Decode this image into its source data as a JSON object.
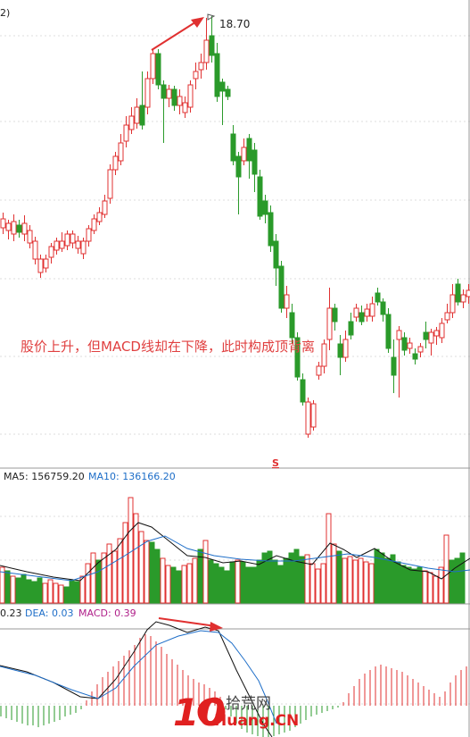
{
  "chart_data": [
    {
      "type": "candlestick",
      "panel": "price",
      "top_left_label": "2)",
      "peak_label": "18.70",
      "annotation": "股价上升，但MACD线却在下降，此时构成顶背离",
      "marker_symbol": "S",
      "colors": {
        "up": "#e03030",
        "down": "#2a9a2a",
        "annotation": "#e04040",
        "arrow": "#e03030",
        "grid": "#d8d8d8"
      }
    },
    {
      "type": "bar",
      "panel": "volume",
      "legend": [
        {
          "label": "MA5: 156759.20",
          "color": "#222222"
        },
        {
          "label": "MA10: 136166.20",
          "color": "#1e6ec8"
        }
      ]
    },
    {
      "type": "bar",
      "panel": "macd",
      "legend": [
        {
          "label": "0.23",
          "color": "#222222"
        },
        {
          "label": "DEA: 0.03",
          "color": "#1e6ec8"
        },
        {
          "label": "MACD: 0.39",
          "color": "#b0208a"
        }
      ]
    }
  ],
  "watermark": {
    "top": "拾荒网",
    "number": "10",
    "bottom": "Huang.CN"
  }
}
